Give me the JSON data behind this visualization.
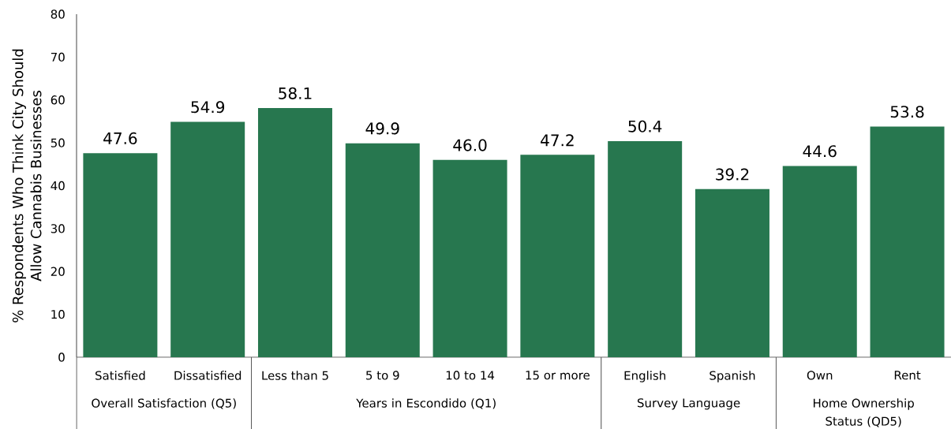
{
  "chart_data": {
    "type": "bar",
    "ylabel": "% Respondents Who Think City Should Allow Cannabis Businesses",
    "categories": [
      "Satisfied",
      "Dissatisfied",
      "Less than 5",
      "5 to 9",
      "10 to 14",
      "15 or more",
      "English",
      "Spanish",
      "Own",
      "Rent"
    ],
    "values": [
      47.6,
      54.9,
      58.1,
      49.9,
      46.0,
      47.2,
      50.4,
      39.2,
      44.6,
      53.8
    ],
    "value_labels": [
      "47.6",
      "54.9",
      "58.1",
      "49.9",
      "46.0",
      "47.2",
      "50.4",
      "39.2",
      "44.6",
      "53.8"
    ],
    "color": "#27774f",
    "ylim": [
      0,
      80
    ],
    "yticks": [
      0,
      10,
      20,
      30,
      40,
      50,
      60,
      70,
      80
    ],
    "annotations": [
      "Overall Satisfaction (Q5)",
      "Years in Escondido (Q1)",
      "Survey Language",
      "Home Ownership Status (QD5)"
    ]
  }
}
